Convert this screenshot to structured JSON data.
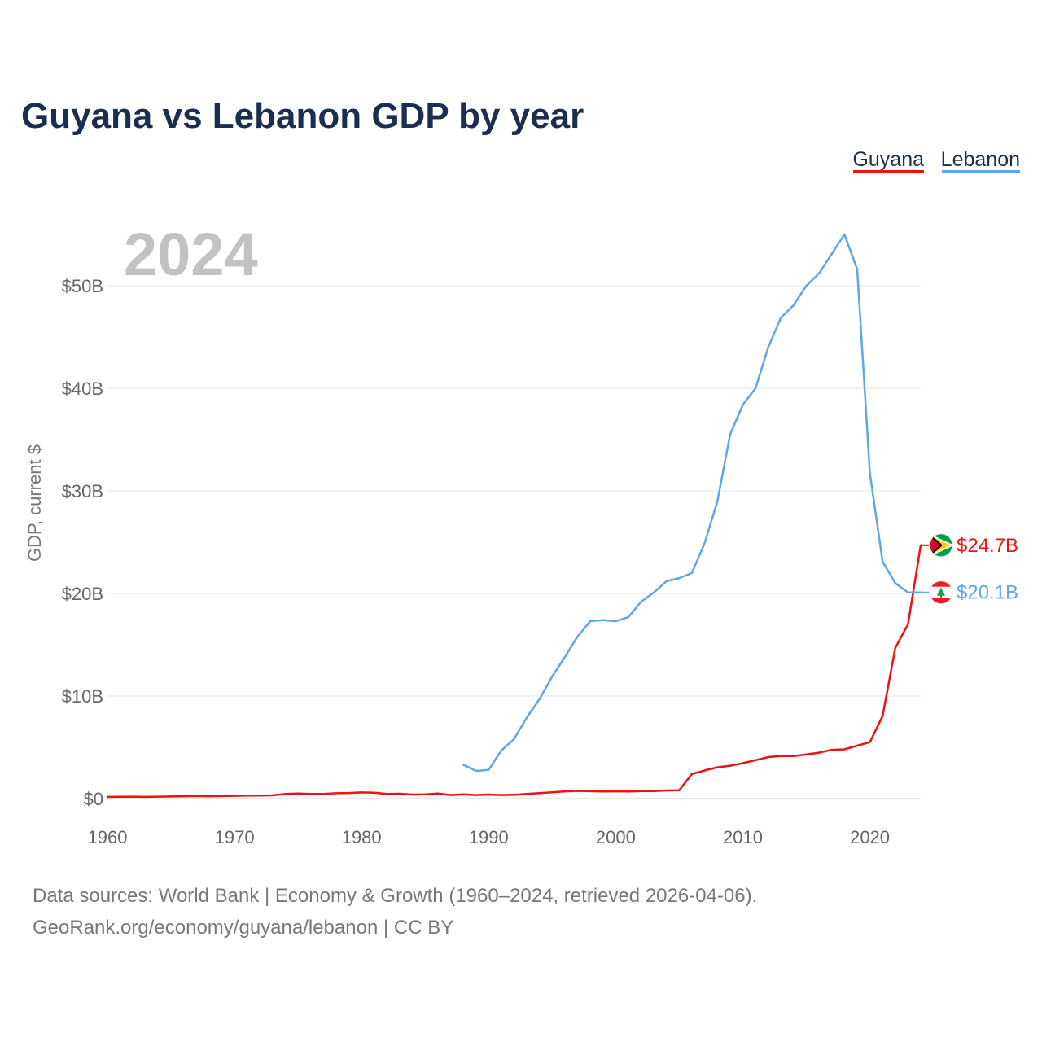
{
  "chart_data": {
    "type": "line",
    "title": "Guyana vs Lebanon GDP by year",
    "ylabel": "GDP, current $",
    "xlabel": "",
    "xlim": [
      1960,
      2024
    ],
    "ylim": [
      0,
      55
    ],
    "y_unit": "billions USD",
    "x_ticks": [
      1960,
      1970,
      1980,
      1990,
      2000,
      2010,
      2020
    ],
    "x_tick_labels": [
      "1960",
      "1970",
      "1980",
      "1990",
      "2000",
      "2010",
      "2020"
    ],
    "y_ticks": [
      0,
      10,
      20,
      30,
      40,
      50
    ],
    "y_tick_labels": [
      "$0",
      "$10B",
      "$20B",
      "$30B",
      "$40B",
      "$50B"
    ],
    "grid": true,
    "legend_position": "top-right",
    "current_year": "2024",
    "series": [
      {
        "name": "Guyana",
        "color": "#ee1111",
        "end_label": "$24.7B",
        "flag": "guyana-flag",
        "x": [
          1960,
          1961,
          1962,
          1963,
          1964,
          1965,
          1966,
          1967,
          1968,
          1969,
          1970,
          1971,
          1972,
          1973,
          1974,
          1975,
          1976,
          1977,
          1978,
          1979,
          1980,
          1981,
          1982,
          1983,
          1984,
          1985,
          1986,
          1987,
          1988,
          1989,
          1990,
          1991,
          1992,
          1993,
          1994,
          1995,
          1996,
          1997,
          1998,
          1999,
          2000,
          2001,
          2002,
          2003,
          2004,
          2005,
          2006,
          2007,
          2008,
          2009,
          2010,
          2011,
          2012,
          2013,
          2014,
          2015,
          2016,
          2017,
          2018,
          2019,
          2020,
          2021,
          2022,
          2023,
          2024
        ],
        "values": [
          0.17,
          0.18,
          0.19,
          0.17,
          0.19,
          0.21,
          0.23,
          0.25,
          0.23,
          0.25,
          0.27,
          0.29,
          0.3,
          0.32,
          0.45,
          0.5,
          0.45,
          0.45,
          0.52,
          0.55,
          0.6,
          0.57,
          0.45,
          0.48,
          0.4,
          0.42,
          0.5,
          0.35,
          0.41,
          0.35,
          0.4,
          0.35,
          0.37,
          0.45,
          0.53,
          0.62,
          0.71,
          0.75,
          0.72,
          0.69,
          0.71,
          0.69,
          0.73,
          0.74,
          0.79,
          0.82,
          2.4,
          2.75,
          3.05,
          3.2,
          3.45,
          3.75,
          4.05,
          4.15,
          4.15,
          4.3,
          4.48,
          4.75,
          4.8,
          5.17,
          5.5,
          8.05,
          14.7,
          17.0,
          24.7
        ]
      },
      {
        "name": "Lebanon",
        "color": "#5fa6e5",
        "end_label": "$20.1B",
        "flag": "lebanon-flag",
        "x": [
          1988,
          1989,
          1990,
          1991,
          1992,
          1993,
          1994,
          1995,
          1996,
          1997,
          1998,
          1999,
          2000,
          2001,
          2002,
          2003,
          2004,
          2005,
          2006,
          2007,
          2008,
          2009,
          2010,
          2011,
          2012,
          2013,
          2014,
          2015,
          2016,
          2017,
          2018,
          2019,
          2020,
          2021,
          2022,
          2023,
          2024
        ],
        "values": [
          3.3,
          2.7,
          2.8,
          4.7,
          5.8,
          7.9,
          9.7,
          11.9,
          13.8,
          15.8,
          17.3,
          17.4,
          17.3,
          17.7,
          19.2,
          20.1,
          21.2,
          21.5,
          22.0,
          24.9,
          29.0,
          35.5,
          38.4,
          40.0,
          44.0,
          46.9,
          48.1,
          50.0,
          51.2,
          53.1,
          55.0,
          51.6,
          31.7,
          23.1,
          21.0,
          20.1,
          20.1
        ]
      }
    ]
  },
  "footer": {
    "source_line": "Data sources: World Bank | Economy & Growth (1960–2024, retrieved 2026-04-06).",
    "attribution_line": "GeoRank.org/economy/guyana/lebanon | CC BY"
  }
}
